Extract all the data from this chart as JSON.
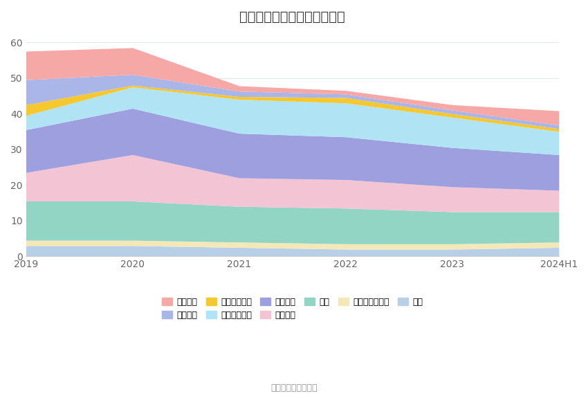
{
  "title": "历年主要资产堆积图（亿元）",
  "source": "数据来源：恒生聚源",
  "x_labels": [
    "2019",
    "2020",
    "2021",
    "2022",
    "2023",
    "2024H1"
  ],
  "series": [
    {
      "name": "其它",
      "color": "#b8cfe8",
      "values": [
        3.0,
        3.0,
        2.5,
        2.0,
        2.0,
        2.5
      ]
    },
    {
      "name": "递延所得税资产",
      "color": "#f5e8b8",
      "values": [
        1.5,
        1.5,
        1.5,
        1.5,
        1.5,
        1.5
      ]
    },
    {
      "name": "商誉",
      "color": "#93d5c5",
      "values": [
        11.0,
        11.0,
        10.0,
        10.0,
        9.0,
        8.5
      ]
    },
    {
      "name": "无形资产",
      "color": "#f2c4d4",
      "values": [
        8.0,
        13.0,
        8.0,
        8.0,
        7.0,
        6.0
      ]
    },
    {
      "name": "固定资产",
      "color": "#9d9fdf",
      "values": [
        12.0,
        13.0,
        12.5,
        12.0,
        11.0,
        10.0
      ]
    },
    {
      "name": "投资性房地产",
      "color": "#b0e4f5",
      "values": [
        4.0,
        6.0,
        9.5,
        9.5,
        8.5,
        6.5
      ]
    },
    {
      "name": "长期股权投资",
      "color": "#f5c830",
      "values": [
        3.0,
        0.5,
        0.8,
        1.5,
        1.0,
        0.8
      ]
    },
    {
      "name": "应收账款",
      "color": "#aab5e8",
      "values": [
        7.0,
        3.0,
        1.5,
        1.0,
        1.0,
        1.0
      ]
    },
    {
      "name": "货币资金",
      "color": "#f5a8a5",
      "values": [
        8.0,
        7.5,
        1.5,
        1.0,
        1.5,
        4.0
      ]
    }
  ],
  "ylim": [
    0,
    62
  ],
  "yticks": [
    0,
    10,
    20,
    30,
    40,
    50,
    60
  ],
  "background_color": "#ffffff",
  "grid_color": "#dde8f0",
  "title_fontsize": 14,
  "tick_fontsize": 10,
  "legend_fontsize": 9
}
